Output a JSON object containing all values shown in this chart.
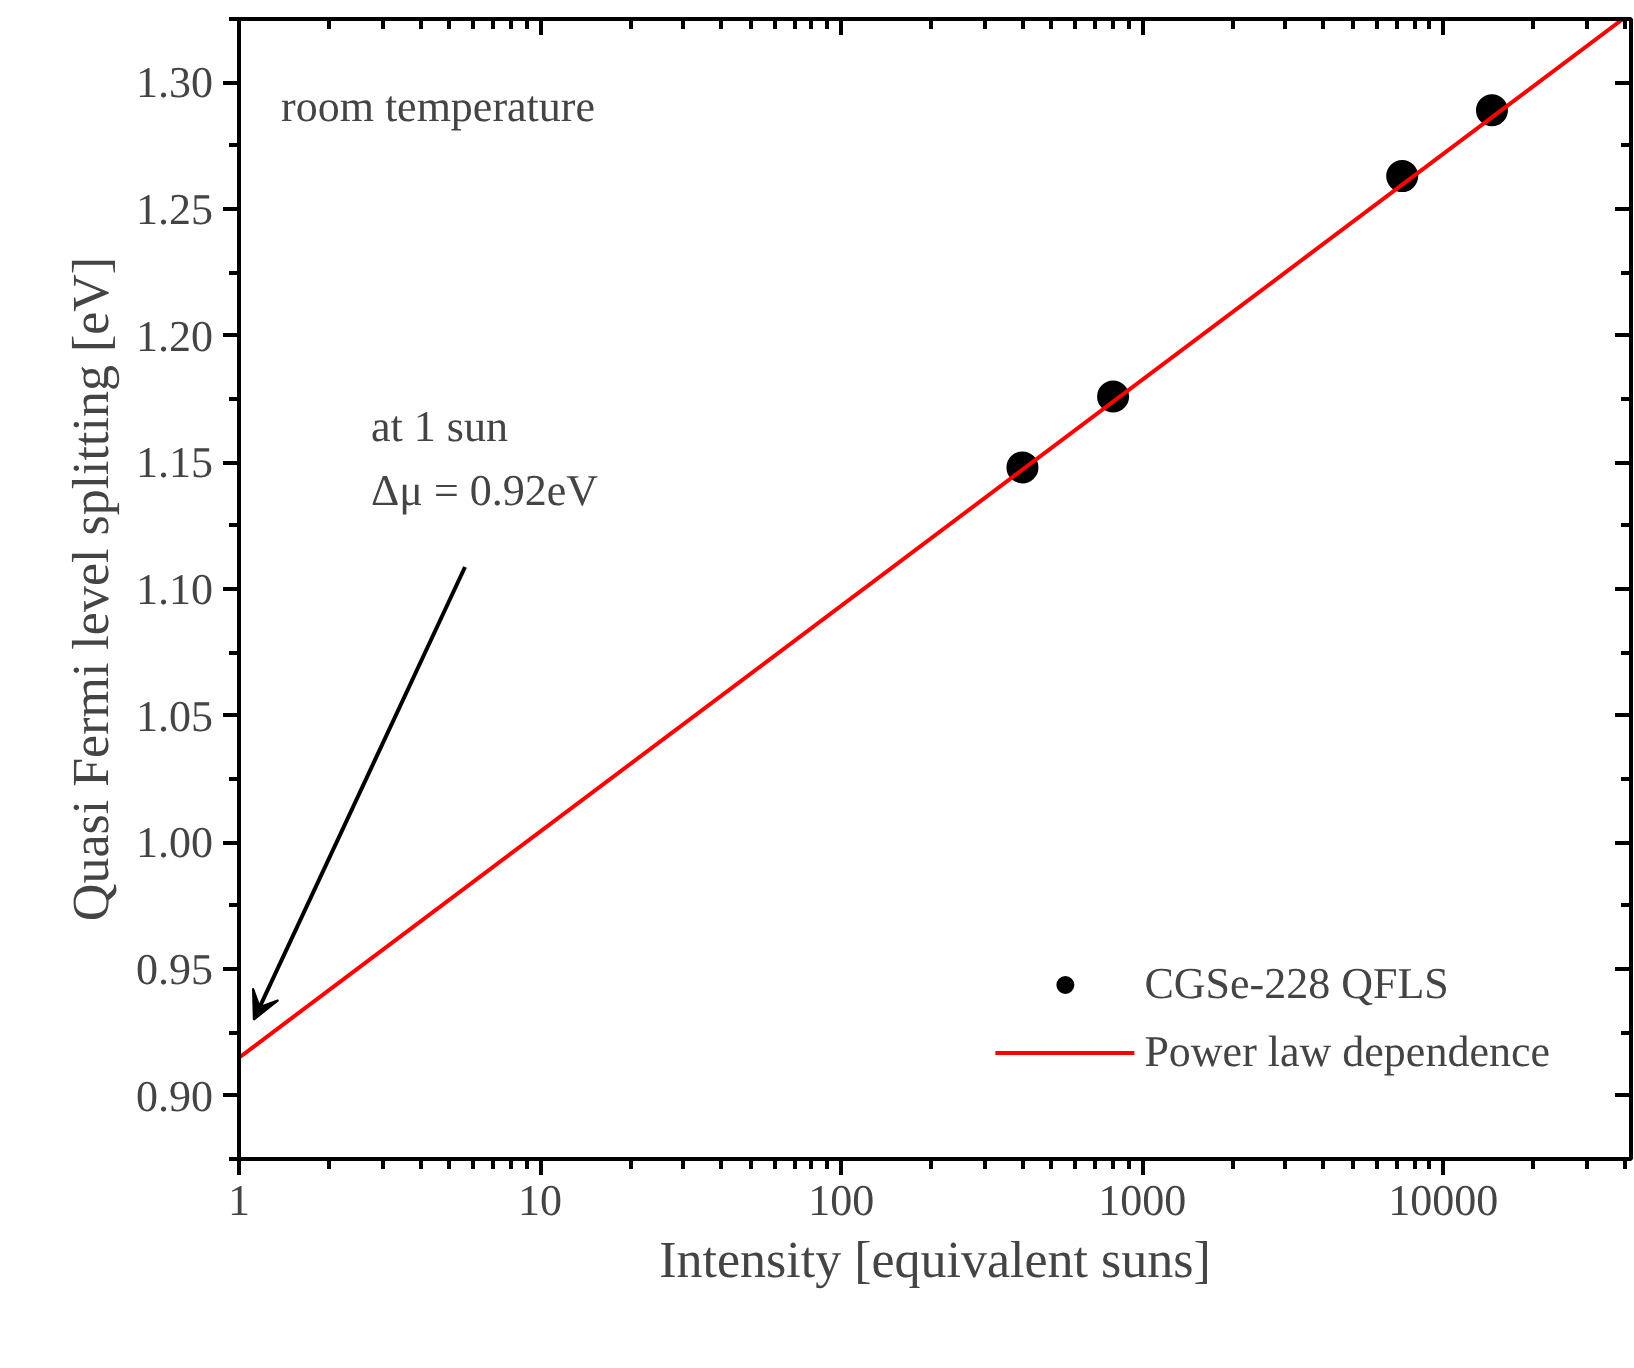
{
  "chart_data": {
    "type": "scatter",
    "xlabel": "Intensity [equivalent suns]",
    "ylabel": "Quasi Fermi level splitting [eV]",
    "log": "x",
    "xlim": [
      1,
      42000
    ],
    "ylim": [
      0.875,
      1.325
    ],
    "xticks": [
      1,
      10,
      100,
      1000,
      10000
    ],
    "yticks": [
      {
        "value": 0.9,
        "label": "0.90"
      },
      {
        "value": 0.95,
        "label": "0.95"
      },
      {
        "value": 1.0,
        "label": "1.00"
      },
      {
        "value": 1.05,
        "label": "1.05"
      },
      {
        "value": 1.1,
        "label": "1.10"
      },
      {
        "value": 1.15,
        "label": "1.15"
      },
      {
        "value": 1.2,
        "label": "1.20"
      },
      {
        "value": 1.25,
        "label": "1.25"
      },
      {
        "value": 1.3,
        "label": "1.30"
      }
    ],
    "grid": false,
    "legend": "bottom right",
    "series": [
      {
        "name": "CGSe-228 QFLS",
        "marker": "circle",
        "color": "#000000",
        "x": [
          400,
          800,
          7300,
          14500
        ],
        "values": [
          1.148,
          1.176,
          1.263,
          1.289
        ]
      },
      {
        "name": "Power law dependence",
        "type": "line",
        "color": "#ff0000",
        "line_style": "solid",
        "x": [
          1,
          39500
        ],
        "values": [
          0.915,
          1.325
        ]
      }
    ],
    "annotations": [
      "room temperature",
      "at 1 sun\nΔμ = 0.92eV"
    ]
  }
}
